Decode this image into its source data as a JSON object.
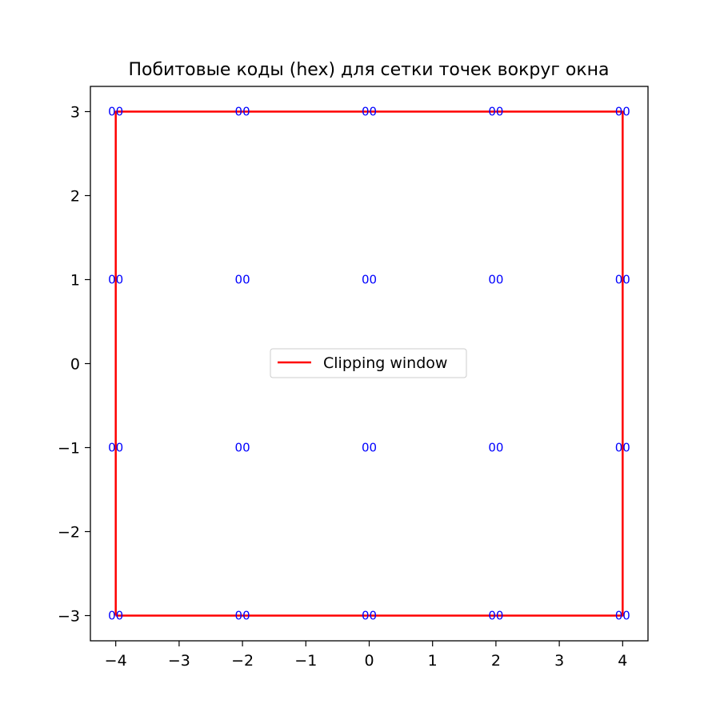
{
  "chart_data": {
    "type": "scatter",
    "title": "Побитовые коды (hex) для сетки точек вокруг окна",
    "xlabel": "",
    "ylabel": "",
    "xlim": [
      -4.4,
      4.4
    ],
    "ylim": [
      -3.3,
      3.3
    ],
    "x_ticks": [
      -4,
      -3,
      -2,
      -1,
      0,
      1,
      2,
      3,
      4
    ],
    "x_tick_labels": [
      "−4",
      "−3",
      "−2",
      "−1",
      "0",
      "1",
      "2",
      "3",
      "4"
    ],
    "y_ticks": [
      -3,
      -2,
      -1,
      0,
      1,
      2,
      3
    ],
    "y_tick_labels": [
      "−3",
      "−2",
      "−1",
      "0",
      "1",
      "2",
      "3"
    ],
    "grid": false,
    "legend": {
      "placement": "center",
      "entries": [
        {
          "label": "Clipping window",
          "color": "#ff0000"
        }
      ]
    },
    "clipping_window": {
      "name": "Clipping window",
      "color": "#ff0000",
      "x": [
        -4,
        4,
        4,
        -4,
        -4
      ],
      "y": [
        -3,
        -3,
        3,
        3,
        -3
      ]
    },
    "point_label_color": "#0000ff",
    "points": [
      {
        "x": -4,
        "y": 3,
        "label": "00"
      },
      {
        "x": -2,
        "y": 3,
        "label": "00"
      },
      {
        "x": 0,
        "y": 3,
        "label": "00"
      },
      {
        "x": 2,
        "y": 3,
        "label": "00"
      },
      {
        "x": 4,
        "y": 3,
        "label": "00"
      },
      {
        "x": -4,
        "y": 1,
        "label": "00"
      },
      {
        "x": -2,
        "y": 1,
        "label": "00"
      },
      {
        "x": 0,
        "y": 1,
        "label": "00"
      },
      {
        "x": 2,
        "y": 1,
        "label": "00"
      },
      {
        "x": 4,
        "y": 1,
        "label": "00"
      },
      {
        "x": -4,
        "y": -1,
        "label": "00"
      },
      {
        "x": -2,
        "y": -1,
        "label": "00"
      },
      {
        "x": 0,
        "y": -1,
        "label": "00"
      },
      {
        "x": 2,
        "y": -1,
        "label": "00"
      },
      {
        "x": 4,
        "y": -1,
        "label": "00"
      },
      {
        "x": -4,
        "y": -3,
        "label": "00"
      },
      {
        "x": -2,
        "y": -3,
        "label": "00"
      },
      {
        "x": 0,
        "y": -3,
        "label": "00"
      },
      {
        "x": 2,
        "y": -3,
        "label": "00"
      },
      {
        "x": 4,
        "y": -3,
        "label": "00"
      }
    ]
  }
}
